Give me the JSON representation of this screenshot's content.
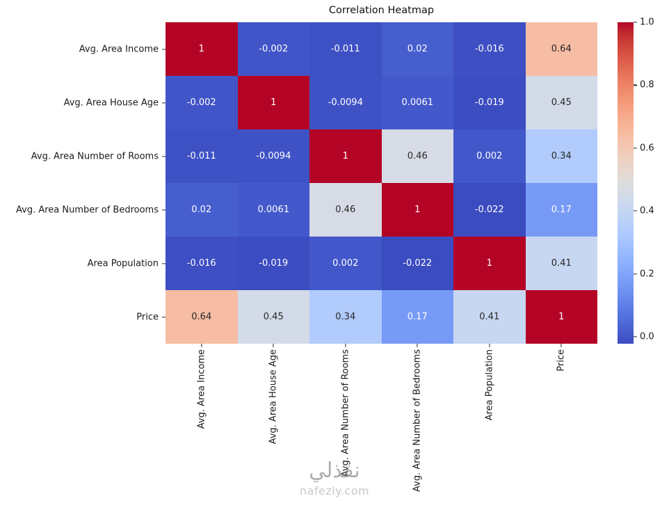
{
  "title": "Correlation Heatmap",
  "chart_data": {
    "type": "heatmap",
    "categories": [
      "Avg. Area Income",
      "Avg. Area House Age",
      "Avg. Area Number of Rooms",
      "Avg. Area Number of Bedrooms",
      "Area Population",
      "Price"
    ],
    "matrix": [
      [
        1,
        -0.002,
        -0.011,
        0.02,
        -0.016,
        0.64
      ],
      [
        -0.002,
        1,
        -0.0094,
        0.0061,
        -0.019,
        0.45
      ],
      [
        -0.011,
        -0.0094,
        1,
        0.46,
        0.002,
        0.34
      ],
      [
        0.02,
        0.0061,
        0.46,
        1,
        -0.022,
        0.17
      ],
      [
        -0.016,
        -0.019,
        0.002,
        -0.022,
        1,
        0.41
      ],
      [
        0.64,
        0.45,
        0.34,
        0.17,
        0.41,
        1
      ]
    ],
    "colormap": "coolwarm",
    "vmin": -0.022,
    "vmax": 1.0,
    "colorbar_ticks": [
      0.0,
      0.2,
      0.4,
      0.6,
      0.8,
      1.0
    ],
    "colorbar_position": "right",
    "annotation_format": ".2g",
    "annotation_dark_color": "#262626",
    "annotation_light_color": "#ffffff"
  },
  "watermark": {
    "arabic": "نفذلي",
    "latin": "nafezly.com"
  }
}
